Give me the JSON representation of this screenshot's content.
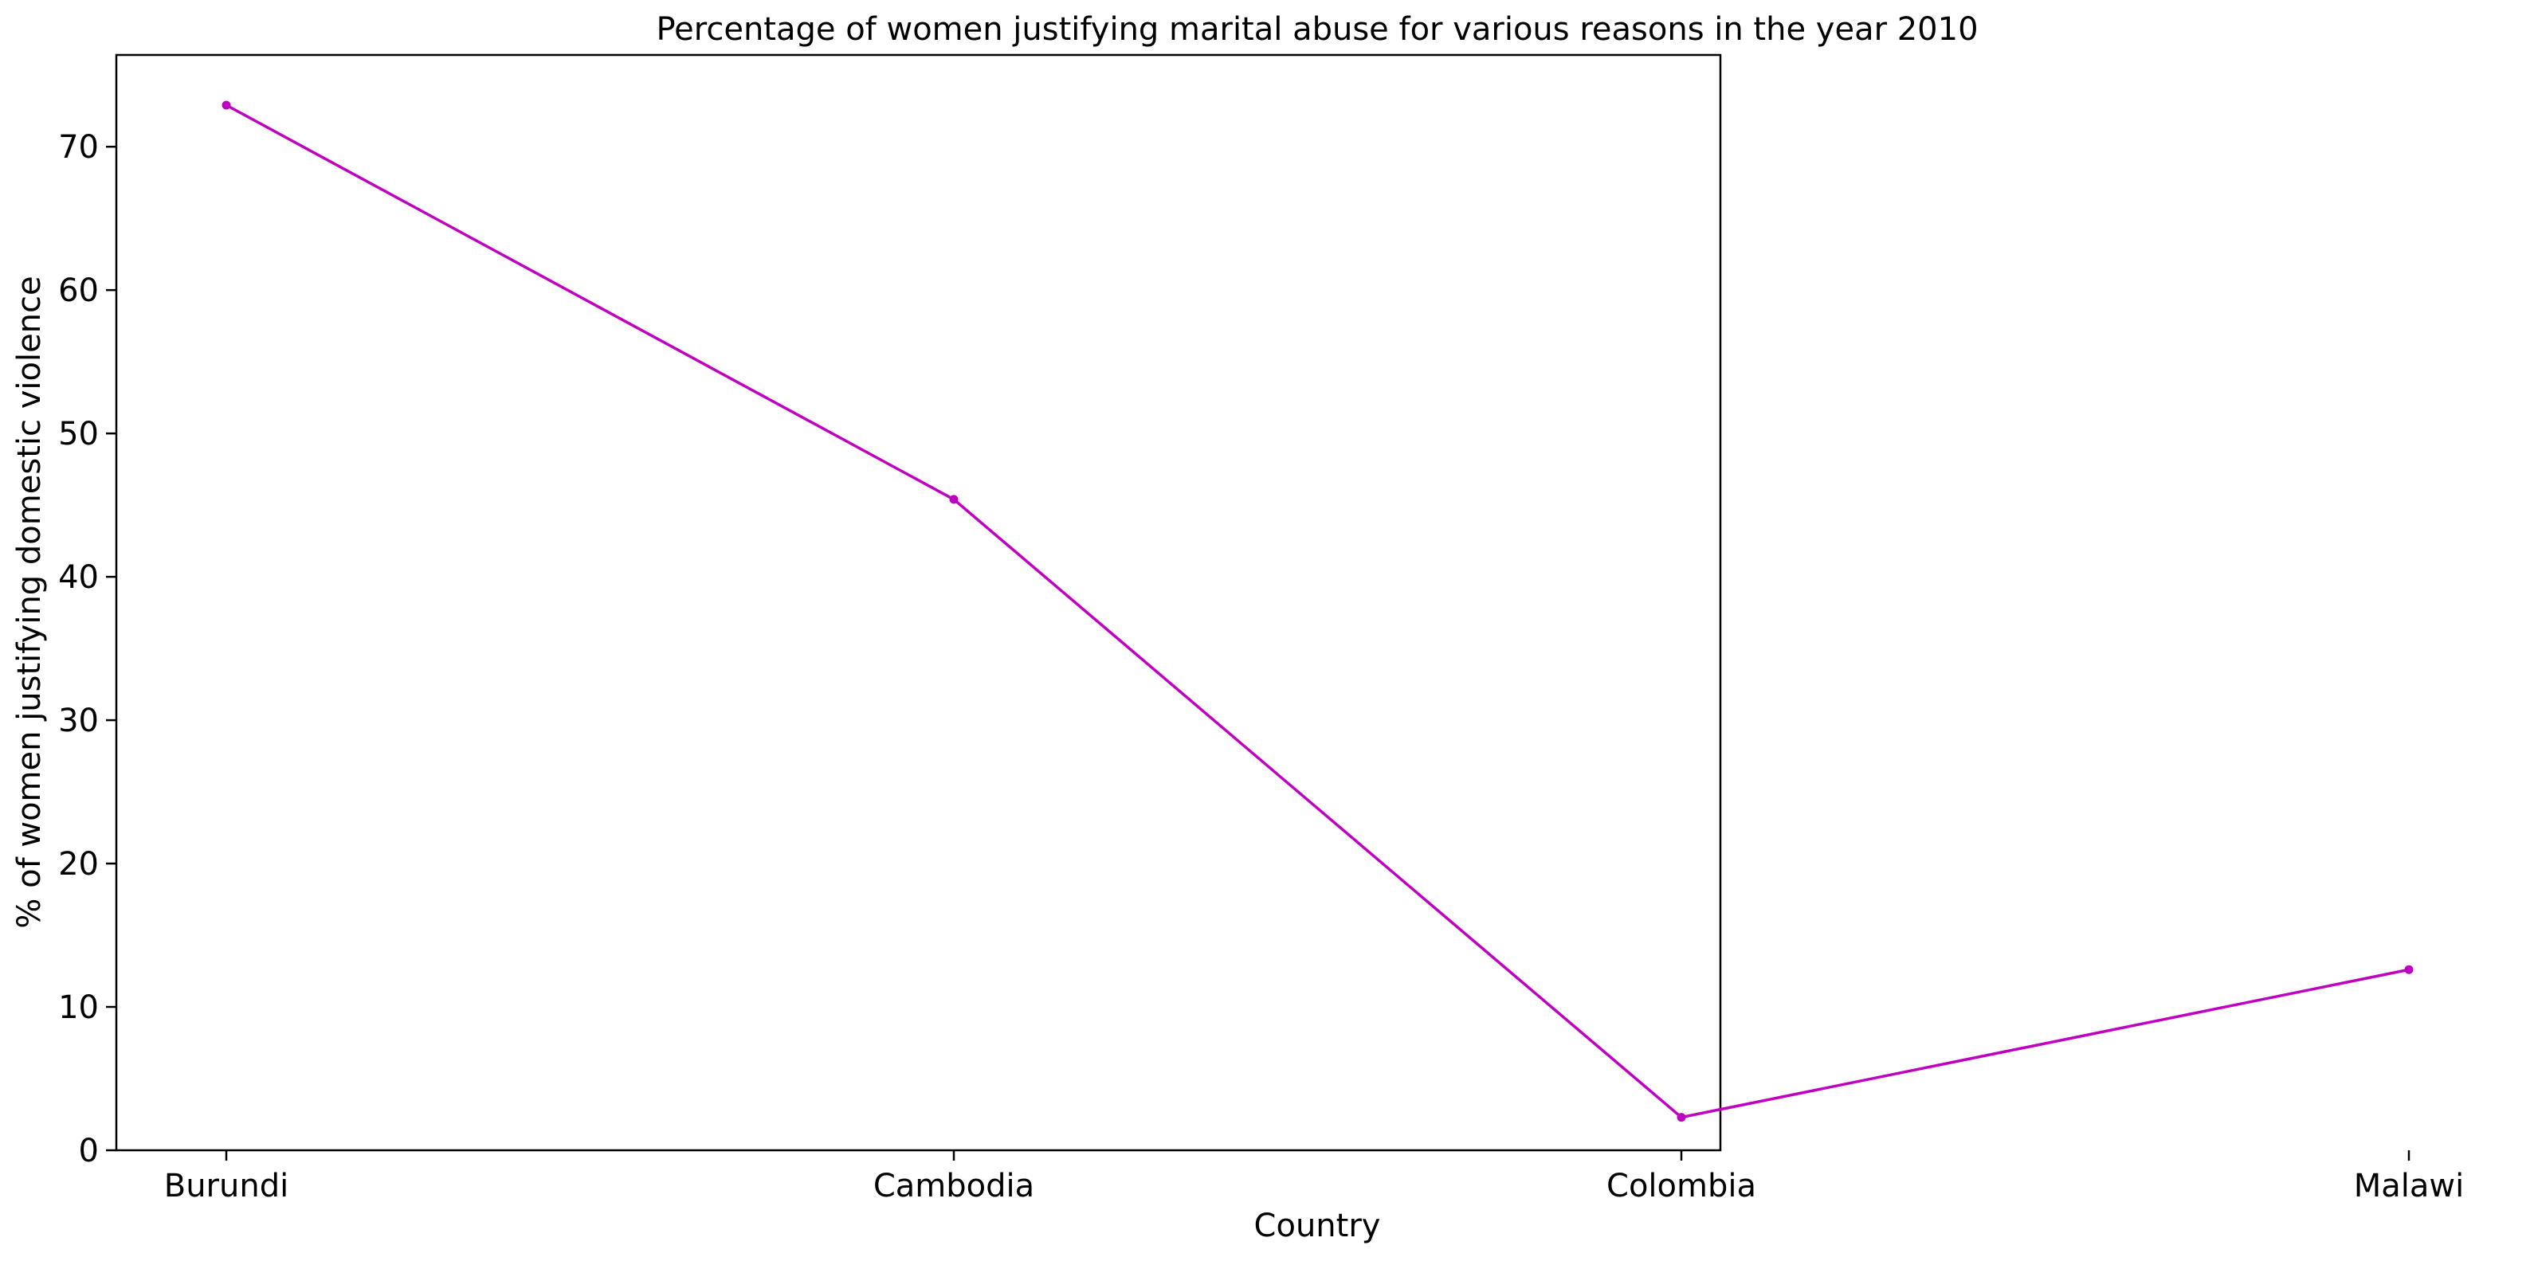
{
  "chart_data": {
    "type": "line",
    "title": "Percentage of women justifying marital abuse for various reasons in the year 2010",
    "xlabel": "Country",
    "ylabel": "% of women justifying domestic violence",
    "categories": [
      "Burundi",
      "Cambodia",
      "Colombia",
      "Malawi"
    ],
    "series": [
      {
        "values": [
          72.9,
          45.4,
          2.3,
          12.6
        ],
        "color": "#c000c0"
      }
    ],
    "ylim": [
      0,
      76.4
    ],
    "yticks": [
      0,
      10,
      20,
      30,
      40,
      50,
      60,
      70
    ],
    "grid": false,
    "legend": "none"
  }
}
